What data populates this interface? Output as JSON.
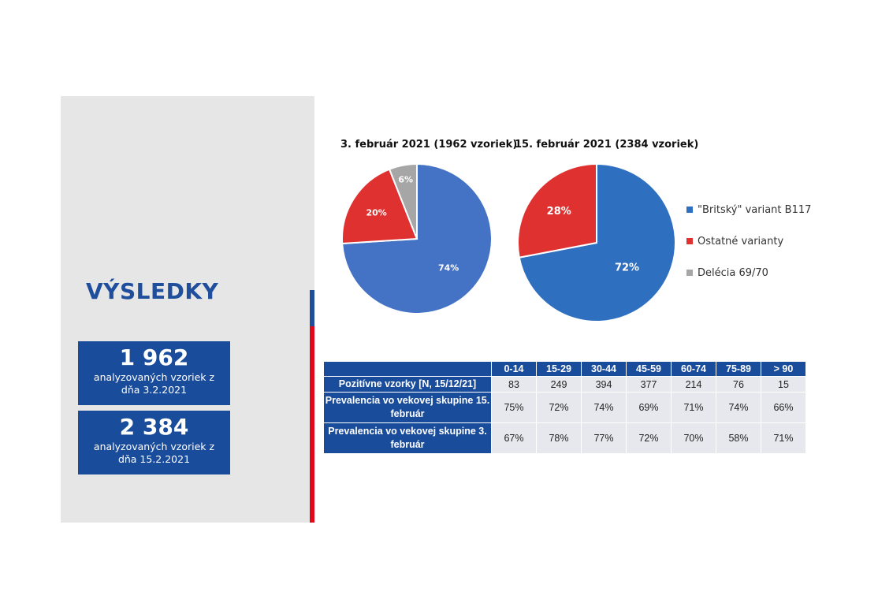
{
  "title": "VÝSLEDKY",
  "stats": [
    {
      "number": "1 962",
      "description": "analyzovaných vzoriek z dňa 3.2.2021"
    },
    {
      "number": "2 384",
      "description": "analyzovaných vzoriek z dňa 15.2.2021"
    }
  ],
  "colors": {
    "british": "#4472c4",
    "other": "#e03131",
    "deletion": "#a6a6a6",
    "british_2": "#2f6fc0",
    "accent_blue": "#1f4e9c",
    "accent_red": "#e2071a"
  },
  "chart_data": [
    {
      "type": "pie",
      "title": "3. február 2021 (1962 vzoriek)",
      "categories": [
        "\"Britský\" variant B117",
        "Ostatné varianty",
        "Delécia 69/70"
      ],
      "values": [
        74,
        20,
        6
      ],
      "labels": [
        "74%",
        "20%",
        "6%"
      ]
    },
    {
      "type": "pie",
      "title": "15. február 2021 (2384 vzoriek)",
      "categories": [
        "\"Britský\" variant B117",
        "Ostatné varianty",
        "Delécia 69/70"
      ],
      "values": [
        72,
        28,
        0
      ],
      "labels": [
        "72%",
        "28%",
        ""
      ]
    },
    {
      "type": "table",
      "columns": [
        "0-14",
        "15-29",
        "30-44",
        "45-59",
        "60-74",
        "75-89",
        "> 90"
      ],
      "rows": [
        {
          "label": "Pozitívne vzorky [N, 15/12/21]",
          "values": [
            "83",
            "249",
            "394",
            "377",
            "214",
            "76",
            "15"
          ]
        },
        {
          "label": "Prevalencia vo vekovej skupine 15. február",
          "values": [
            "75%",
            "72%",
            "74%",
            "69%",
            "71%",
            "74%",
            "66%"
          ]
        },
        {
          "label": "Prevalencia vo vekovej skupine 3. február",
          "values": [
            "67%",
            "78%",
            "77%",
            "72%",
            "70%",
            "58%",
            "71%"
          ]
        }
      ]
    }
  ],
  "legend": [
    {
      "label": "\"Britský\" variant B117"
    },
    {
      "label": "Ostatné varianty"
    },
    {
      "label": "Delécia 69/70"
    }
  ]
}
